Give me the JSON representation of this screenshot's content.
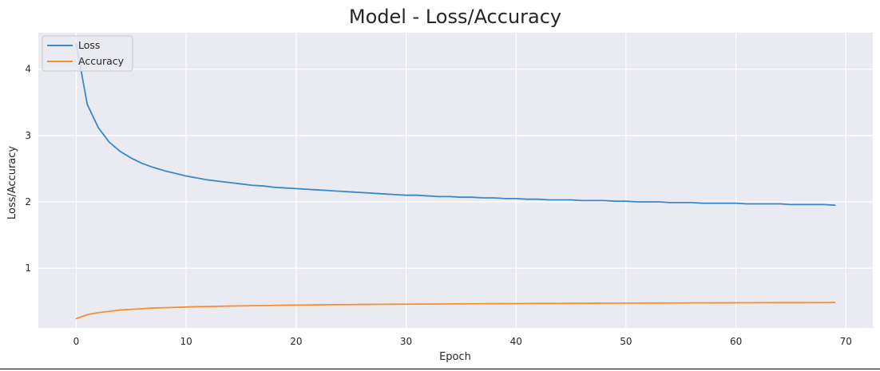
{
  "chart_data": {
    "type": "line",
    "title": "Model - Loss/Accuracy",
    "xlabel": "Epoch",
    "ylabel": "Loss/Accuracy",
    "xlim": [
      -3.45,
      72.45
    ],
    "ylim": [
      0.1,
      4.55
    ],
    "xticks": [
      0,
      10,
      20,
      30,
      40,
      50,
      60,
      70
    ],
    "yticks": [
      1,
      2,
      3,
      4
    ],
    "grid": true,
    "legend_position": "top-left",
    "background_color": "#eaeaf2",
    "grid_color": "#ffffff",
    "series": [
      {
        "name": "Loss",
        "color": "#3a88c8",
        "x": [
          0,
          1,
          2,
          3,
          4,
          5,
          6,
          7,
          8,
          9,
          10,
          11,
          12,
          13,
          14,
          15,
          16,
          17,
          18,
          19,
          20,
          21,
          22,
          23,
          24,
          25,
          26,
          27,
          28,
          29,
          30,
          31,
          32,
          33,
          34,
          35,
          36,
          37,
          38,
          39,
          40,
          41,
          42,
          43,
          44,
          45,
          46,
          47,
          48,
          49,
          50,
          51,
          52,
          53,
          54,
          55,
          56,
          57,
          58,
          59,
          60,
          61,
          62,
          63,
          64,
          65,
          66,
          67,
          68,
          69
        ],
        "values": [
          4.38,
          3.47,
          3.12,
          2.9,
          2.76,
          2.66,
          2.58,
          2.52,
          2.47,
          2.43,
          2.39,
          2.36,
          2.33,
          2.31,
          2.29,
          2.27,
          2.25,
          2.24,
          2.22,
          2.21,
          2.2,
          2.19,
          2.18,
          2.17,
          2.16,
          2.15,
          2.14,
          2.13,
          2.12,
          2.11,
          2.1,
          2.1,
          2.09,
          2.08,
          2.08,
          2.07,
          2.07,
          2.06,
          2.06,
          2.05,
          2.05,
          2.04,
          2.04,
          2.03,
          2.03,
          2.03,
          2.02,
          2.02,
          2.02,
          2.01,
          2.01,
          2.0,
          2.0,
          2.0,
          1.99,
          1.99,
          1.99,
          1.98,
          1.98,
          1.98,
          1.98,
          1.97,
          1.97,
          1.97,
          1.97,
          1.96,
          1.96,
          1.96,
          1.96,
          1.95
        ]
      },
      {
        "name": "Accuracy",
        "color": "#f5902f",
        "x": [
          0,
          1,
          2,
          3,
          4,
          5,
          6,
          7,
          8,
          9,
          10,
          11,
          12,
          13,
          14,
          15,
          16,
          17,
          18,
          19,
          20,
          21,
          22,
          23,
          24,
          25,
          26,
          27,
          28,
          29,
          30,
          31,
          32,
          33,
          34,
          35,
          36,
          37,
          38,
          39,
          40,
          41,
          42,
          43,
          44,
          45,
          46,
          47,
          48,
          49,
          50,
          51,
          52,
          53,
          54,
          55,
          56,
          57,
          58,
          59,
          60,
          61,
          62,
          63,
          64,
          65,
          66,
          67,
          68,
          69
        ],
        "values": [
          0.24,
          0.3,
          0.33,
          0.35,
          0.37,
          0.38,
          0.39,
          0.4,
          0.405,
          0.41,
          0.415,
          0.42,
          0.423,
          0.426,
          0.43,
          0.432,
          0.435,
          0.437,
          0.44,
          0.442,
          0.444,
          0.446,
          0.448,
          0.45,
          0.451,
          0.452,
          0.454,
          0.455,
          0.456,
          0.457,
          0.458,
          0.459,
          0.46,
          0.461,
          0.462,
          0.463,
          0.464,
          0.465,
          0.466,
          0.466,
          0.467,
          0.468,
          0.469,
          0.469,
          0.47,
          0.471,
          0.471,
          0.472,
          0.473,
          0.473,
          0.474,
          0.474,
          0.475,
          0.475,
          0.476,
          0.476,
          0.477,
          0.477,
          0.478,
          0.478,
          0.479,
          0.479,
          0.48,
          0.48,
          0.481,
          0.481,
          0.481,
          0.482,
          0.482,
          0.483
        ]
      }
    ]
  }
}
